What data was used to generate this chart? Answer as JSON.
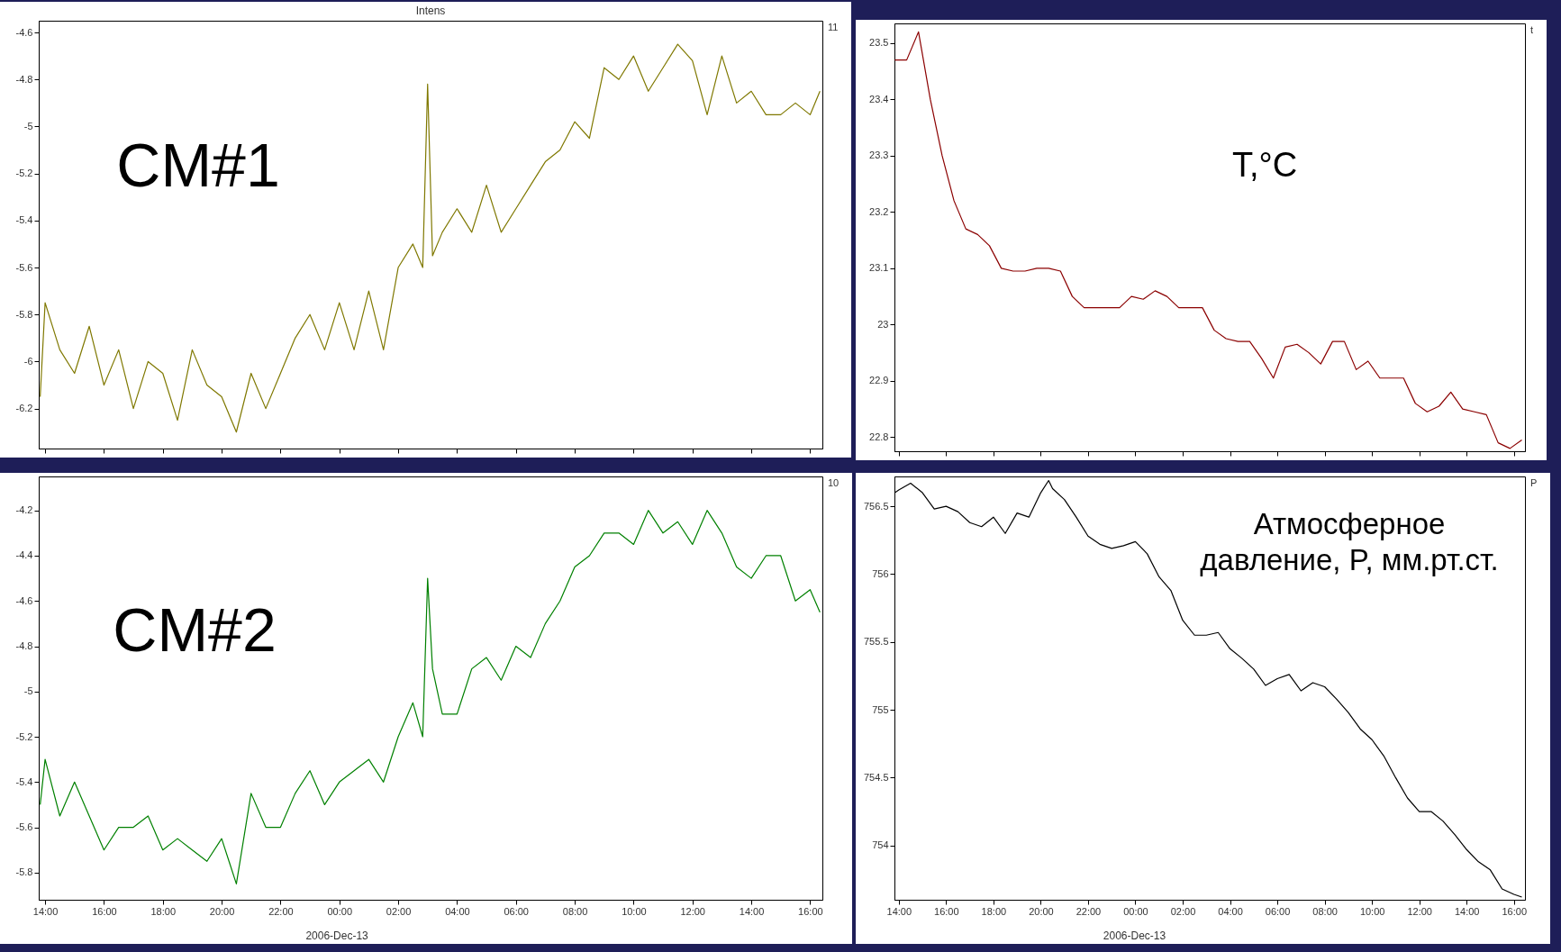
{
  "chart_data": [
    {
      "type": "line",
      "title": "Intens",
      "annotations": [
        "CM#1",
        "11"
      ],
      "tick_labels": "y",
      "xlim": [
        "2006-12-12T13:47",
        "2006-12-13T16:25"
      ],
      "xticks": [
        {
          "value": "2006-12-12T14:00",
          "label": null
        },
        {
          "value": "2006-12-12T16:00",
          "label": null
        },
        {
          "value": "2006-12-12T18:00",
          "label": null
        },
        {
          "value": "2006-12-12T20:00",
          "label": null
        },
        {
          "value": "2006-12-12T22:00",
          "label": null
        },
        {
          "value": "2006-12-13T00:00",
          "label": null
        },
        {
          "value": "2006-12-13T02:00",
          "label": null
        },
        {
          "value": "2006-12-13T04:00",
          "label": null
        },
        {
          "value": "2006-12-13T06:00",
          "label": null
        },
        {
          "value": "2006-12-13T08:00",
          "label": null
        },
        {
          "value": "2006-12-13T10:00",
          "label": null
        },
        {
          "value": "2006-12-13T12:00",
          "label": null
        },
        {
          "value": "2006-12-13T14:00",
          "label": null
        },
        {
          "value": "2006-12-13T16:00",
          "label": null
        }
      ],
      "ylim": [
        -6.37,
        -4.55
      ],
      "yticks": [
        -6.2,
        -6,
        -5.8,
        -5.6,
        -5.4,
        -5.2,
        -5,
        -4.8,
        -4.6
      ],
      "x": [
        "2006-12-12T13:50",
        "2006-12-12T14:00",
        "2006-12-12T14:30",
        "2006-12-12T15:00",
        "2006-12-12T15:30",
        "2006-12-12T16:00",
        "2006-12-12T16:30",
        "2006-12-12T17:00",
        "2006-12-12T17:30",
        "2006-12-12T18:00",
        "2006-12-12T18:30",
        "2006-12-12T19:00",
        "2006-12-12T19:30",
        "2006-12-12T20:00",
        "2006-12-12T20:30",
        "2006-12-12T21:00",
        "2006-12-12T21:30",
        "2006-12-12T22:00",
        "2006-12-12T22:30",
        "2006-12-12T23:00",
        "2006-12-12T23:30",
        "2006-12-13T00:00",
        "2006-12-13T00:30",
        "2006-12-13T01:00",
        "2006-12-13T01:30",
        "2006-12-13T02:00",
        "2006-12-13T02:30",
        "2006-12-13T02:50",
        "2006-12-13T03:00",
        "2006-12-13T03:10",
        "2006-12-13T03:30",
        "2006-12-13T04:00",
        "2006-12-13T04:30",
        "2006-12-13T05:00",
        "2006-12-13T05:30",
        "2006-12-13T06:00",
        "2006-12-13T06:30",
        "2006-12-13T07:00",
        "2006-12-13T07:30",
        "2006-12-13T08:00",
        "2006-12-13T08:30",
        "2006-12-13T09:00",
        "2006-12-13T09:30",
        "2006-12-13T10:00",
        "2006-12-13T10:30",
        "2006-12-13T11:00",
        "2006-12-13T11:30",
        "2006-12-13T12:00",
        "2006-12-13T12:30",
        "2006-12-13T13:00",
        "2006-12-13T13:30",
        "2006-12-13T14:00",
        "2006-12-13T14:30",
        "2006-12-13T15:00",
        "2006-12-13T15:30",
        "2006-12-13T16:00",
        "2006-12-13T16:20"
      ],
      "series": [
        {
          "color": "#7f7800",
          "values": [
            -6.15,
            -5.75,
            -5.95,
            -6.05,
            -5.85,
            -6.1,
            -5.95,
            -6.2,
            -6.0,
            -6.05,
            -6.25,
            -5.95,
            -6.1,
            -6.15,
            -6.3,
            -6.05,
            -6.2,
            -6.05,
            -5.9,
            -5.8,
            -5.95,
            -5.75,
            -5.95,
            -5.7,
            -5.95,
            -5.6,
            -5.5,
            -5.6,
            -4.82,
            -5.55,
            -5.45,
            -5.35,
            -5.45,
            -5.25,
            -5.45,
            -5.35,
            -5.25,
            -5.15,
            -5.1,
            -4.98,
            -5.05,
            -4.75,
            -4.8,
            -4.7,
            -4.85,
            -4.75,
            -4.65,
            -4.72,
            -4.95,
            -4.7,
            -4.9,
            -4.85,
            -4.95,
            -4.95,
            -4.9,
            -4.95,
            -4.85
          ]
        }
      ]
    },
    {
      "type": "line",
      "annotations": [
        "T,°C",
        "t"
      ],
      "tick_labels": "y",
      "xlim": [
        "2006-12-12T13:49",
        "2006-12-13T16:28"
      ],
      "xticks": [
        {
          "value": "2006-12-12T14:00",
          "label": null
        },
        {
          "value": "2006-12-12T16:00",
          "label": null
        },
        {
          "value": "2006-12-12T18:00",
          "label": null
        },
        {
          "value": "2006-12-12T20:00",
          "label": null
        },
        {
          "value": "2006-12-12T22:00",
          "label": null
        },
        {
          "value": "2006-12-13T00:00",
          "label": null
        },
        {
          "value": "2006-12-13T02:00",
          "label": null
        },
        {
          "value": "2006-12-13T04:00",
          "label": null
        },
        {
          "value": "2006-12-13T06:00",
          "label": null
        },
        {
          "value": "2006-12-13T08:00",
          "label": null
        },
        {
          "value": "2006-12-13T10:00",
          "label": null
        },
        {
          "value": "2006-12-13T12:00",
          "label": null
        },
        {
          "value": "2006-12-13T14:00",
          "label": null
        },
        {
          "value": "2006-12-13T16:00",
          "label": null
        }
      ],
      "ylim": [
        22.775,
        23.535
      ],
      "yticks": [
        22.8,
        22.9,
        23,
        23.1,
        23.2,
        23.3,
        23.4,
        23.5
      ],
      "series": [
        {
          "color": "#8b0000",
          "x": [
            "2006-12-12T13:50",
            "2006-12-12T14:20",
            "2006-12-12T14:50",
            "2006-12-12T15:20",
            "2006-12-12T15:50",
            "2006-12-12T16:20",
            "2006-12-12T16:50",
            "2006-12-12T17:20",
            "2006-12-12T17:50",
            "2006-12-12T18:20",
            "2006-12-12T18:50",
            "2006-12-12T19:20",
            "2006-12-12T19:50",
            "2006-12-12T20:20",
            "2006-12-12T20:50",
            "2006-12-12T21:20",
            "2006-12-12T21:50",
            "2006-12-12T22:20",
            "2006-12-12T22:50",
            "2006-12-12T23:20",
            "2006-12-12T23:50",
            "2006-12-13T00:20",
            "2006-12-13T00:50",
            "2006-12-13T01:20",
            "2006-12-13T01:50",
            "2006-12-13T02:20",
            "2006-12-13T02:50",
            "2006-12-13T03:20",
            "2006-12-13T03:50",
            "2006-12-13T04:20",
            "2006-12-13T04:50",
            "2006-12-13T05:20",
            "2006-12-13T05:50",
            "2006-12-13T06:20",
            "2006-12-13T06:50",
            "2006-12-13T07:20",
            "2006-12-13T07:50",
            "2006-12-13T08:20",
            "2006-12-13T08:50",
            "2006-12-13T09:20",
            "2006-12-13T09:50",
            "2006-12-13T10:20",
            "2006-12-13T10:50",
            "2006-12-13T11:20",
            "2006-12-13T11:50",
            "2006-12-13T12:20",
            "2006-12-13T12:50",
            "2006-12-13T13:20",
            "2006-12-13T13:50",
            "2006-12-13T14:20",
            "2006-12-13T14:50",
            "2006-12-13T15:20",
            "2006-12-13T15:50",
            "2006-12-13T16:20"
          ],
          "values": [
            23.47,
            23.47,
            23.52,
            23.4,
            23.3,
            23.22,
            23.17,
            23.16,
            23.14,
            23.1,
            23.095,
            23.095,
            23.1,
            23.1,
            23.095,
            23.05,
            23.03,
            23.03,
            23.03,
            23.03,
            23.05,
            23.045,
            23.06,
            23.05,
            23.03,
            23.03,
            23.03,
            22.99,
            22.975,
            22.97,
            22.97,
            22.94,
            22.905,
            22.96,
            22.965,
            22.95,
            22.93,
            22.97,
            22.97,
            22.92,
            22.935,
            22.905,
            22.905,
            22.905,
            22.86,
            22.845,
            22.855,
            22.88,
            22.85,
            22.845,
            22.84,
            22.79,
            22.78,
            22.795
          ]
        }
      ]
    },
    {
      "type": "line",
      "xlabel": "2006-Dec-13",
      "annotations": [
        "CM#2",
        "10"
      ],
      "xlim": [
        "2006-12-12T13:47",
        "2006-12-13T16:25"
      ],
      "xticks": [
        {
          "value": "2006-12-12T14:00",
          "label": "14:00"
        },
        {
          "value": "2006-12-12T16:00",
          "label": "16:00"
        },
        {
          "value": "2006-12-12T18:00",
          "label": "18:00"
        },
        {
          "value": "2006-12-12T20:00",
          "label": "20:00"
        },
        {
          "value": "2006-12-12T22:00",
          "label": "22:00"
        },
        {
          "value": "2006-12-13T00:00",
          "label": "00:00"
        },
        {
          "value": "2006-12-13T02:00",
          "label": "02:00"
        },
        {
          "value": "2006-12-13T04:00",
          "label": "04:00"
        },
        {
          "value": "2006-12-13T06:00",
          "label": "06:00"
        },
        {
          "value": "2006-12-13T08:00",
          "label": "08:00"
        },
        {
          "value": "2006-12-13T10:00",
          "label": "10:00"
        },
        {
          "value": "2006-12-13T12:00",
          "label": "12:00"
        },
        {
          "value": "2006-12-13T14:00",
          "label": "14:00"
        },
        {
          "value": "2006-12-13T16:00",
          "label": "16:00"
        }
      ],
      "ylim": [
        -5.92,
        -4.05
      ],
      "yticks": [
        -5.8,
        -5.6,
        -5.4,
        -5.2,
        -5,
        -4.8,
        -4.6,
        -4.4,
        -4.2
      ],
      "x": [
        "2006-12-12T13:50",
        "2006-12-12T14:00",
        "2006-12-12T14:30",
        "2006-12-12T15:00",
        "2006-12-12T15:30",
        "2006-12-12T16:00",
        "2006-12-12T16:30",
        "2006-12-12T17:00",
        "2006-12-12T17:30",
        "2006-12-12T18:00",
        "2006-12-12T18:30",
        "2006-12-12T19:00",
        "2006-12-12T19:30",
        "2006-12-12T20:00",
        "2006-12-12T20:30",
        "2006-12-12T21:00",
        "2006-12-12T21:30",
        "2006-12-12T22:00",
        "2006-12-12T22:30",
        "2006-12-12T23:00",
        "2006-12-12T23:30",
        "2006-12-13T00:00",
        "2006-12-13T00:30",
        "2006-12-13T01:00",
        "2006-12-13T01:30",
        "2006-12-13T02:00",
        "2006-12-13T02:30",
        "2006-12-13T02:50",
        "2006-12-13T03:00",
        "2006-12-13T03:10",
        "2006-12-13T03:30",
        "2006-12-13T04:00",
        "2006-12-13T04:30",
        "2006-12-13T05:00",
        "2006-12-13T05:30",
        "2006-12-13T06:00",
        "2006-12-13T06:30",
        "2006-12-13T07:00",
        "2006-12-13T07:30",
        "2006-12-13T08:00",
        "2006-12-13T08:30",
        "2006-12-13T09:00",
        "2006-12-13T09:30",
        "2006-12-13T10:00",
        "2006-12-13T10:30",
        "2006-12-13T11:00",
        "2006-12-13T11:30",
        "2006-12-13T12:00",
        "2006-12-13T12:30",
        "2006-12-13T13:00",
        "2006-12-13T13:30",
        "2006-12-13T14:00",
        "2006-12-13T14:30",
        "2006-12-13T15:00",
        "2006-12-13T15:30",
        "2006-12-13T16:00",
        "2006-12-13T16:20"
      ],
      "series": [
        {
          "color": "#008000",
          "values": [
            -5.5,
            -5.3,
            -5.55,
            -5.4,
            -5.55,
            -5.7,
            -5.6,
            -5.6,
            -5.55,
            -5.7,
            -5.65,
            -5.7,
            -5.75,
            -5.65,
            -5.85,
            -5.45,
            -5.6,
            -5.6,
            -5.45,
            -5.35,
            -5.5,
            -5.4,
            -5.35,
            -5.3,
            -5.4,
            -5.2,
            -5.05,
            -5.2,
            -4.5,
            -4.9,
            -5.1,
            -5.1,
            -4.9,
            -4.85,
            -4.95,
            -4.8,
            -4.85,
            -4.7,
            -4.6,
            -4.45,
            -4.4,
            -4.3,
            -4.3,
            -4.35,
            -4.2,
            -4.3,
            -4.25,
            -4.35,
            -4.2,
            -4.3,
            -4.45,
            -4.5,
            -4.4,
            -4.4,
            -4.6,
            -4.55,
            -4.65
          ]
        }
      ]
    },
    {
      "type": "line",
      "xlabel": "2006-Dec-13",
      "annotations": [
        "Атмосферное\nдавление, P, мм.рт.ст.",
        "P"
      ],
      "xlim": [
        "2006-12-12T13:49",
        "2006-12-13T16:28"
      ],
      "xticks": [
        {
          "value": "2006-12-12T14:00",
          "label": "14:00"
        },
        {
          "value": "2006-12-12T16:00",
          "label": "16:00"
        },
        {
          "value": "2006-12-12T18:00",
          "label": "18:00"
        },
        {
          "value": "2006-12-12T20:00",
          "label": "20:00"
        },
        {
          "value": "2006-12-12T22:00",
          "label": "22:00"
        },
        {
          "value": "2006-12-13T00:00",
          "label": "00:00"
        },
        {
          "value": "2006-12-13T02:00",
          "label": "02:00"
        },
        {
          "value": "2006-12-13T04:00",
          "label": "04:00"
        },
        {
          "value": "2006-12-13T06:00",
          "label": "06:00"
        },
        {
          "value": "2006-12-13T08:00",
          "label": "08:00"
        },
        {
          "value": "2006-12-13T10:00",
          "label": "10:00"
        },
        {
          "value": "2006-12-13T12:00",
          "label": "12:00"
        },
        {
          "value": "2006-12-13T14:00",
          "label": "14:00"
        },
        {
          "value": "2006-12-13T16:00",
          "label": "16:00"
        }
      ],
      "ylim": [
        753.6,
        756.72
      ],
      "yticks": [
        754,
        754.5,
        755,
        755.5,
        756,
        756.5
      ],
      "series": [
        {
          "color": "#000000",
          "x": [
            "2006-12-12T13:50",
            "2006-12-12T14:00",
            "2006-12-12T14:30",
            "2006-12-12T15:00",
            "2006-12-12T15:30",
            "2006-12-12T16:00",
            "2006-12-12T16:30",
            "2006-12-12T17:00",
            "2006-12-12T17:30",
            "2006-12-12T18:00",
            "2006-12-12T18:30",
            "2006-12-12T19:00",
            "2006-12-12T19:30",
            "2006-12-12T20:00",
            "2006-12-12T20:20",
            "2006-12-12T20:30",
            "2006-12-12T21:00",
            "2006-12-12T21:30",
            "2006-12-12T22:00",
            "2006-12-12T22:30",
            "2006-12-12T23:00",
            "2006-12-12T23:30",
            "2006-12-13T00:00",
            "2006-12-13T00:30",
            "2006-12-13T01:00",
            "2006-12-13T01:30",
            "2006-12-13T02:00",
            "2006-12-13T02:30",
            "2006-12-13T03:00",
            "2006-12-13T03:30",
            "2006-12-13T04:00",
            "2006-12-13T04:30",
            "2006-12-13T05:00",
            "2006-12-13T05:30",
            "2006-12-13T06:00",
            "2006-12-13T06:30",
            "2006-12-13T07:00",
            "2006-12-13T07:30",
            "2006-12-13T08:00",
            "2006-12-13T08:30",
            "2006-12-13T09:00",
            "2006-12-13T09:30",
            "2006-12-13T10:00",
            "2006-12-13T10:30",
            "2006-12-13T11:00",
            "2006-12-13T11:30",
            "2006-12-13T12:00",
            "2006-12-13T12:30",
            "2006-12-13T13:00",
            "2006-12-13T13:30",
            "2006-12-13T14:00",
            "2006-12-13T14:30",
            "2006-12-13T15:00",
            "2006-12-13T15:30",
            "2006-12-13T16:00",
            "2006-12-13T16:20"
          ],
          "values": [
            756.6,
            756.62,
            756.67,
            756.6,
            756.48,
            756.5,
            756.46,
            756.38,
            756.35,
            756.42,
            756.3,
            756.45,
            756.42,
            756.6,
            756.69,
            756.63,
            756.55,
            756.42,
            756.28,
            756.22,
            756.19,
            756.21,
            756.24,
            756.15,
            755.98,
            755.88,
            755.66,
            755.55,
            755.55,
            755.57,
            755.45,
            755.38,
            755.3,
            755.18,
            755.23,
            755.26,
            755.14,
            755.2,
            755.17,
            755.08,
            754.98,
            754.86,
            754.78,
            754.66,
            754.5,
            754.35,
            754.25,
            754.25,
            754.18,
            754.08,
            753.97,
            753.88,
            753.82,
            753.68,
            753.64,
            753.62
          ]
        }
      ]
    }
  ]
}
